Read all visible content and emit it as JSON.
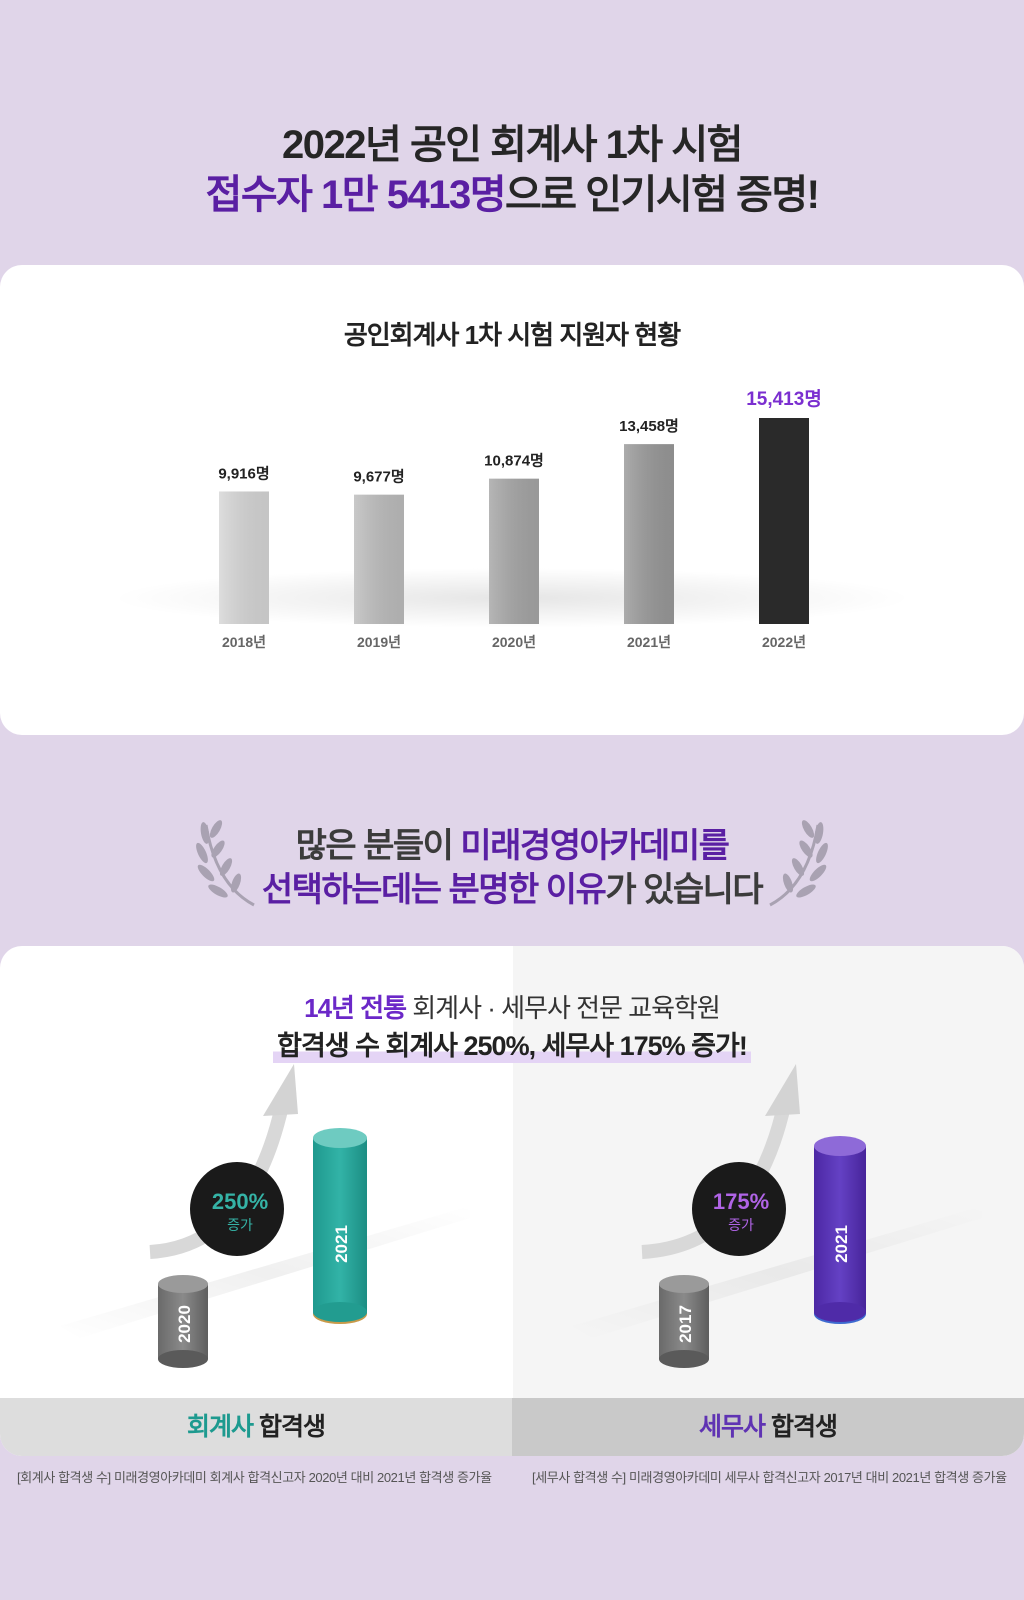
{
  "headline": {
    "line1": "2022년 공인 회계사 1차 시험",
    "line2_highlight": "접수자 1만 5413명",
    "line2_rest": "으로 인기시험 증명!"
  },
  "chart_data": {
    "type": "bar",
    "title": "공인회계사 1차 시험 지원자 현황",
    "categories": [
      "2018년",
      "2019년",
      "2020년",
      "2021년",
      "2022년"
    ],
    "values": [
      9916,
      9677,
      10874,
      13458,
      15413
    ],
    "value_labels": [
      "9,916명",
      "9,677명",
      "10,874명",
      "13,458명",
      "15,413명"
    ],
    "highlight_index": 4,
    "colors": {
      "bars": [
        "#d6d6d6",
        "#bdbdbd",
        "#a6a6a6",
        "#999999",
        "#2a2a2a"
      ],
      "highlight_label": "#7b2fd0",
      "label": "#222222",
      "tick": "#666666"
    },
    "grid": false,
    "legend": "none"
  },
  "section2": {
    "line1_plain": "많은 분들이 ",
    "line1_highlight": "미래경영아카데미를",
    "line2_highlight": "선택하는데는 분명한 이유",
    "line2_plain": "가 있습니다",
    "laurel_left_icon": "laurel-left-icon",
    "laurel_right_icon": "laurel-right-icon"
  },
  "pass": {
    "intro_highlight": "14년 전통",
    "intro_rest": " 회계사 · 세무사 전문 교육학원",
    "intro_line2": "합격생 수 회계사 250%, 세무사 175% 증가!",
    "left": {
      "percent": "250%",
      "increase": "증가",
      "from_year": "2020",
      "to_year": "2021",
      "label_highlight": "회계사",
      "label_rest": " 합격생",
      "accent": "#27a89c",
      "footnote": "[회계사 합격생 수]  미래경영아카데미 회계사 합격신고자 2020년 대비 2021년 합격생 증가율"
    },
    "right": {
      "percent": "175%",
      "increase": "증가",
      "from_year": "2017",
      "to_year": "2021",
      "label_highlight": "세무사",
      "label_rest": " 합격생",
      "accent": "#5a32b5",
      "footnote": "[세무사 합격생 수]  미래경영아카데미 세무사 합격신고자 2017년 대비 2021년 합격생 증가율"
    }
  }
}
